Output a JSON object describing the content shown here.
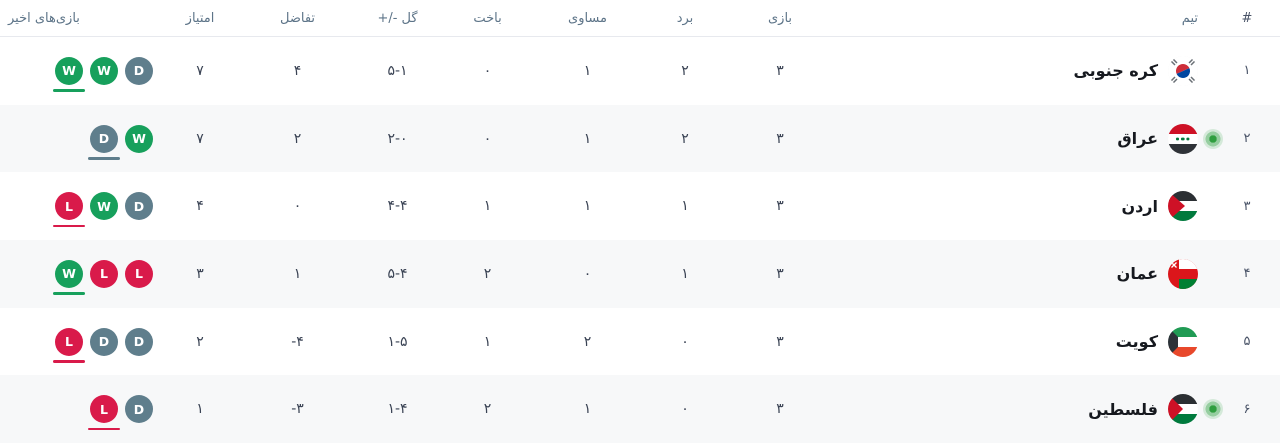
{
  "table": {
    "headers": {
      "rank": "#",
      "team": "تیم",
      "played": "بازی",
      "wins": "برد",
      "draws": "مساوی",
      "losses": "باخت",
      "goals": "گل -/+",
      "diff": "تفاضل",
      "points": "امتیاز",
      "recent": "بازی‌های اخیر"
    },
    "colors": {
      "win": "#17a05c",
      "draw": "#5f7e8c",
      "loss": "#d91a4a",
      "live_indicator": "#2f9e3f",
      "alt_row_bg": "#f7f8f9",
      "header_text": "#5d7488"
    },
    "rows": [
      {
        "rank": "۱",
        "team": "کره جنوبی",
        "flag": "south-korea",
        "live": false,
        "played": "۳",
        "wins": "۲",
        "draws": "۱",
        "losses": "۰",
        "goals": "۵-۱",
        "diff": "۴",
        "points": "۷",
        "recent": [
          "W",
          "W",
          "D"
        ]
      },
      {
        "rank": "۲",
        "team": "عراق",
        "flag": "iraq",
        "live": true,
        "played": "۳",
        "wins": "۲",
        "draws": "۱",
        "losses": "۰",
        "goals": "۲-۰",
        "diff": "۲",
        "points": "۷",
        "recent": [
          "D",
          "W"
        ]
      },
      {
        "rank": "۳",
        "team": "اردن",
        "flag": "jordan",
        "live": false,
        "played": "۳",
        "wins": "۱",
        "draws": "۱",
        "losses": "۱",
        "goals": "۴-۴",
        "diff": "۰",
        "points": "۴",
        "recent": [
          "L",
          "W",
          "D"
        ]
      },
      {
        "rank": "۴",
        "team": "عمان",
        "flag": "oman",
        "live": false,
        "played": "۳",
        "wins": "۱",
        "draws": "۰",
        "losses": "۲",
        "goals": "۵-۴",
        "diff": "۱",
        "points": "۳",
        "recent": [
          "W",
          "L",
          "L"
        ]
      },
      {
        "rank": "۵",
        "team": "کویت",
        "flag": "kuwait",
        "live": false,
        "played": "۳",
        "wins": "۰",
        "draws": "۲",
        "losses": "۱",
        "goals": "۱-۵",
        "diff": "-۴",
        "points": "۲",
        "recent": [
          "L",
          "D",
          "D"
        ]
      },
      {
        "rank": "۶",
        "team": "فلسطین",
        "flag": "palestine",
        "live": true,
        "played": "۳",
        "wins": "۰",
        "draws": "۱",
        "losses": "۲",
        "goals": "۱-۴",
        "diff": "-۳",
        "points": "۱",
        "recent": [
          "L",
          "D"
        ]
      }
    ]
  }
}
